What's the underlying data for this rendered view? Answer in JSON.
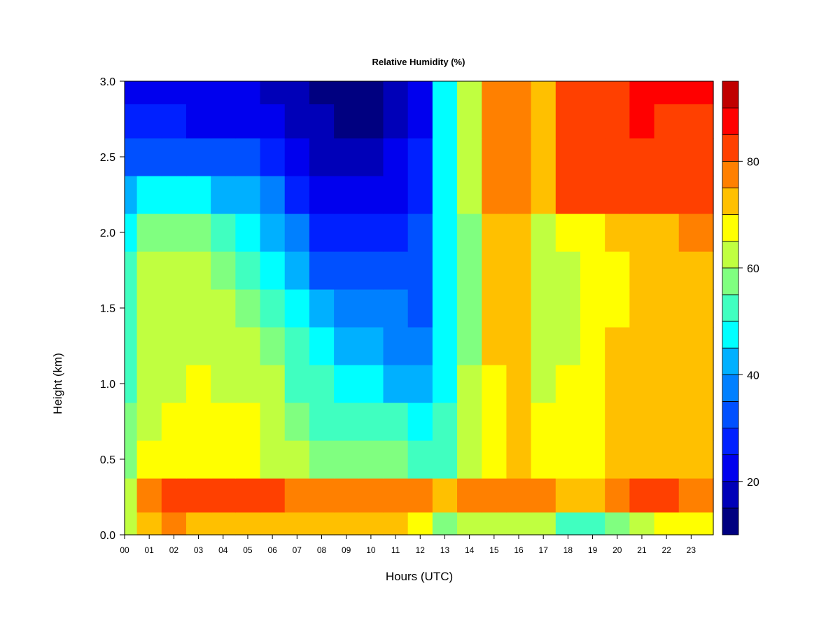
{
  "chart_data": {
    "type": "heatmap",
    "title": "Relative Humidity (%)",
    "xlabel": "Hours (UTC)",
    "ylabel": "Height (km)",
    "x_ticks": [
      "00",
      "01",
      "02",
      "03",
      "04",
      "05",
      "06",
      "07",
      "08",
      "09",
      "10",
      "11",
      "12",
      "13",
      "14",
      "15",
      "16",
      "17",
      "18",
      "19",
      "20",
      "21",
      "22",
      "23"
    ],
    "y_ticks": [
      "0.0",
      "0.5",
      "1.0",
      "1.5",
      "2.0",
      "2.5",
      "3.0"
    ],
    "xlim": [
      0,
      23.9
    ],
    "ylim": [
      0,
      3.0
    ],
    "x": [
      0,
      1,
      2,
      3,
      4,
      5,
      6,
      7,
      8,
      9,
      10,
      11,
      12,
      13,
      14,
      15,
      16,
      17,
      18,
      19,
      20,
      21,
      22,
      23
    ],
    "y": [
      0.05,
      0.25,
      0.5,
      0.75,
      1.0,
      1.25,
      1.5,
      1.75,
      2.0,
      2.25,
      2.5,
      2.75,
      2.95
    ],
    "z": [
      [
        62,
        72,
        75,
        74,
        74,
        74,
        72,
        70,
        70,
        70,
        70,
        70,
        65,
        58,
        62,
        64,
        64,
        60,
        50,
        54,
        58,
        64,
        66,
        68
      ],
      [
        60,
        78,
        80,
        81,
        81,
        82,
        80,
        79,
        79,
        79,
        79,
        78,
        76,
        74,
        76,
        79,
        79,
        77,
        70,
        74,
        78,
        81,
        80,
        78
      ],
      [
        56,
        66,
        68,
        68,
        68,
        68,
        64,
        60,
        58,
        57,
        56,
        56,
        54,
        52,
        62,
        68,
        70,
        68,
        66,
        68,
        72,
        74,
        72,
        74
      ],
      [
        55,
        63,
        65,
        66,
        65,
        66,
        62,
        56,
        54,
        52,
        50,
        50,
        48,
        50,
        60,
        68,
        70,
        66,
        66,
        68,
        72,
        74,
        72,
        74
      ],
      [
        53,
        63,
        64,
        65,
        64,
        64,
        60,
        53,
        50,
        48,
        45,
        44,
        42,
        48,
        60,
        69,
        70,
        64,
        65,
        67,
        72,
        72,
        70,
        74
      ],
      [
        52,
        62,
        63,
        64,
        62,
        60,
        57,
        50,
        45,
        43,
        40,
        38,
        37,
        47,
        58,
        70,
        70,
        63,
        64,
        66,
        70,
        71,
        70,
        74
      ],
      [
        52,
        61,
        62,
        63,
        60,
        57,
        54,
        46,
        40,
        38,
        36,
        35,
        34,
        46,
        58,
        70,
        70,
        62,
        64,
        65,
        68,
        70,
        70,
        74
      ],
      [
        50,
        60,
        60,
        60,
        56,
        52,
        48,
        42,
        34,
        30,
        30,
        30,
        30,
        46,
        58,
        70,
        70,
        62,
        64,
        66,
        68,
        70,
        70,
        74
      ],
      [
        48,
        56,
        56,
        55,
        50,
        46,
        42,
        35,
        28,
        25,
        26,
        28,
        30,
        46,
        58,
        72,
        72,
        64,
        68,
        68,
        72,
        72,
        72,
        76
      ],
      [
        40,
        46,
        46,
        45,
        42,
        42,
        36,
        28,
        22,
        20,
        20,
        24,
        28,
        46,
        60,
        76,
        76,
        70,
        80,
        80,
        82,
        82,
        80,
        80
      ],
      [
        30,
        34,
        34,
        32,
        30,
        32,
        26,
        22,
        18,
        16,
        16,
        20,
        26,
        46,
        60,
        76,
        76,
        72,
        82,
        82,
        83,
        83,
        82,
        82
      ],
      [
        26,
        26,
        26,
        24,
        24,
        24,
        20,
        18,
        16,
        14,
        14,
        18,
        24,
        46,
        60,
        76,
        76,
        74,
        84,
        84,
        84,
        85,
        84,
        84
      ],
      [
        24,
        22,
        22,
        20,
        20,
        20,
        18,
        16,
        14,
        13,
        13,
        16,
        22,
        46,
        60,
        76,
        76,
        74,
        84,
        84,
        84,
        86,
        86,
        86
      ]
    ],
    "colorbar": {
      "ticks": [
        "20",
        "40",
        "60",
        "80"
      ],
      "range": [
        10,
        95
      ],
      "levels": [
        10,
        15,
        20,
        25,
        30,
        35,
        40,
        45,
        50,
        55,
        60,
        65,
        70,
        75,
        80,
        85,
        90,
        95
      ],
      "colors": [
        "#000080",
        "#0000b8",
        "#0000ee",
        "#0020ff",
        "#0050ff",
        "#0080ff",
        "#00b0ff",
        "#00ffff",
        "#40ffc0",
        "#80ff80",
        "#c0ff40",
        "#ffff00",
        "#ffc000",
        "#ff8000",
        "#ff4000",
        "#ff0000",
        "#c00000",
        "#800000"
      ]
    }
  }
}
